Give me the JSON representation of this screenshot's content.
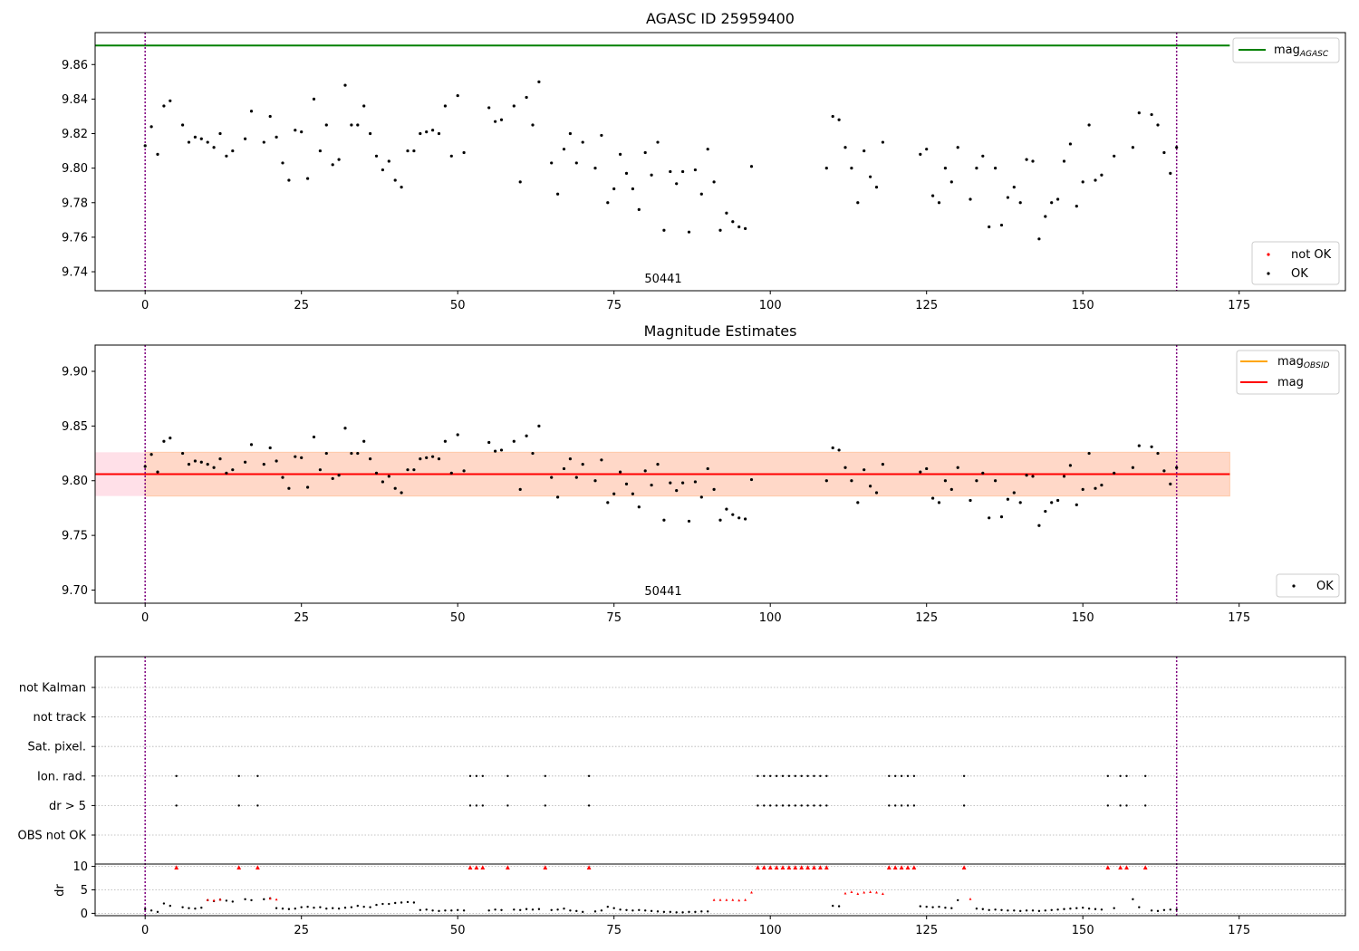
{
  "colors": {
    "agasc_line": "#008000",
    "mag_line": "#ff0000",
    "obsid_line": "#ffa500",
    "ok": "#000000",
    "not_ok": "#ff0000",
    "vline": "#800080",
    "band_inner": "#ffd8c8",
    "band_outer": "#ffe0e8",
    "grid": "#b0b0b0"
  },
  "panel1": {
    "title": "AGASC ID 25959400",
    "annotation": "50441",
    "legend_top": {
      "mag_label": "mag",
      "mag_sub": "AGASC"
    },
    "legend_bottom": {
      "not_ok_label": "not OK",
      "ok_label": "OK"
    }
  },
  "panel2": {
    "title": "Magnitude Estimates",
    "annotation": "50441",
    "legend_top": {
      "obsid_label": "mag",
      "obsid_sub": "OBSID",
      "mag_label": "mag"
    },
    "legend_bottom": {
      "ok_label": "OK"
    }
  },
  "panel3": {
    "ylabel": "dr"
  },
  "chart_data": [
    {
      "type": "scatter",
      "title": "AGASC ID 25959400",
      "xlim": [
        -8,
        192
      ],
      "ylim": [
        9.729,
        9.8785
      ],
      "xticks": [
        0,
        25,
        50,
        75,
        100,
        125,
        150,
        175
      ],
      "yticks": [
        9.74,
        9.76,
        9.78,
        9.8,
        9.82,
        9.84,
        9.86
      ],
      "ytick_labels": [
        "9.74",
        "9.76",
        "9.78",
        "9.80",
        "9.82",
        "9.84",
        "9.86"
      ],
      "hline": {
        "name": "mag_AGASC",
        "y": 9.871,
        "x_end": 173.5
      },
      "vlines": [
        0,
        165
      ],
      "annotation": {
        "text": "50441",
        "x": 82,
        "y": 9.733
      },
      "series": [
        {
          "name": "OK",
          "x": [
            0,
            1,
            2,
            3,
            4,
            6,
            7,
            8,
            9,
            10,
            11,
            12,
            13,
            14,
            16,
            17,
            19,
            20,
            21,
            22,
            23,
            24,
            25,
            26,
            27,
            28,
            29,
            30,
            31,
            32,
            33,
            34,
            35,
            36,
            37,
            38,
            39,
            40,
            41,
            42,
            43,
            44,
            45,
            46,
            47,
            48,
            49,
            50,
            51,
            55,
            56,
            57,
            59,
            60,
            61,
            62,
            63,
            65,
            66,
            67,
            68,
            69,
            70,
            72,
            73,
            74,
            75,
            76,
            77,
            78,
            79,
            80,
            81,
            82,
            83,
            84,
            85,
            86,
            87,
            88,
            89,
            90,
            91,
            92,
            93,
            94,
            95,
            96,
            97,
            109,
            110,
            111,
            112,
            113,
            114,
            115,
            116,
            117,
            118,
            124,
            125,
            126,
            127,
            128,
            129,
            130,
            132,
            133,
            134,
            135,
            136,
            137,
            138,
            139,
            140,
            141,
            142,
            143,
            144,
            145,
            146,
            147,
            148,
            149,
            150,
            151,
            152,
            153,
            155,
            158,
            159,
            161,
            162,
            163,
            164,
            165
          ],
          "y": [
            9.813,
            9.824,
            9.808,
            9.836,
            9.839,
            9.825,
            9.815,
            9.818,
            9.817,
            9.815,
            9.812,
            9.82,
            9.807,
            9.81,
            9.817,
            9.833,
            9.815,
            9.83,
            9.818,
            9.803,
            9.793,
            9.822,
            9.821,
            9.794,
            9.84,
            9.81,
            9.825,
            9.802,
            9.805,
            9.848,
            9.825,
            9.825,
            9.836,
            9.82,
            9.807,
            9.799,
            9.804,
            9.793,
            9.789,
            9.81,
            9.81,
            9.82,
            9.821,
            9.822,
            9.82,
            9.836,
            9.807,
            9.842,
            9.809,
            9.835,
            9.827,
            9.828,
            9.836,
            9.792,
            9.841,
            9.825,
            9.85,
            9.803,
            9.785,
            9.811,
            9.82,
            9.803,
            9.815,
            9.8,
            9.819,
            9.78,
            9.788,
            9.808,
            9.797,
            9.788,
            9.776,
            9.809,
            9.796,
            9.815,
            9.764,
            9.798,
            9.791,
            9.798,
            9.763,
            9.799,
            9.785,
            9.811,
            9.792,
            9.764,
            9.774,
            9.769,
            9.766,
            9.765,
            9.801,
            9.8,
            9.83,
            9.828,
            9.812,
            9.8,
            9.78,
            9.81,
            9.795,
            9.789,
            9.815,
            9.808,
            9.811,
            9.784,
            9.78,
            9.8,
            9.792,
            9.812,
            9.782,
            9.8,
            9.807,
            9.766,
            9.8,
            9.767,
            9.783,
            9.789,
            9.78,
            9.805,
            9.804,
            9.759,
            9.772,
            9.78,
            9.782,
            9.804,
            9.814,
            9.778,
            9.792,
            9.825,
            9.793,
            9.796,
            9.807,
            9.812,
            9.832,
            9.831,
            9.825,
            9.809,
            9.797,
            9.812
          ]
        }
      ]
    },
    {
      "type": "scatter",
      "title": "Magnitude Estimates",
      "xlim": [
        -8,
        192
      ],
      "ylim": [
        9.688,
        9.924
      ],
      "xticks": [
        0,
        25,
        50,
        75,
        100,
        125,
        150,
        175
      ],
      "yticks": [
        9.7,
        9.75,
        9.8,
        9.85,
        9.9
      ],
      "ytick_labels": [
        "9.70",
        "9.75",
        "9.80",
        "9.85",
        "9.90"
      ],
      "hlines": [
        {
          "name": "mag_OBSID",
          "y": 9.806,
          "band": [
            9.786,
            9.826
          ],
          "x_start": 0,
          "x_end": 173.5
        },
        {
          "name": "mag",
          "y": 9.806,
          "band": [
            9.786,
            9.826
          ],
          "x_start": -8,
          "x_end": 173.5
        }
      ],
      "vlines": [
        0,
        165
      ],
      "annotation": {
        "text": "50441",
        "x": 82,
        "y": 9.696
      },
      "series": [
        {
          "name": "OK",
          "x": [
            0,
            1,
            2,
            3,
            4,
            6,
            7,
            8,
            9,
            10,
            11,
            12,
            13,
            14,
            16,
            17,
            19,
            20,
            21,
            22,
            23,
            24,
            25,
            26,
            27,
            28,
            29,
            30,
            31,
            32,
            33,
            34,
            35,
            36,
            37,
            38,
            39,
            40,
            41,
            42,
            43,
            44,
            45,
            46,
            47,
            48,
            49,
            50,
            51,
            55,
            56,
            57,
            59,
            60,
            61,
            62,
            63,
            65,
            66,
            67,
            68,
            69,
            70,
            72,
            73,
            74,
            75,
            76,
            77,
            78,
            79,
            80,
            81,
            82,
            83,
            84,
            85,
            86,
            87,
            88,
            89,
            90,
            91,
            92,
            93,
            94,
            95,
            96,
            97,
            109,
            110,
            111,
            112,
            113,
            114,
            115,
            116,
            117,
            118,
            124,
            125,
            126,
            127,
            128,
            129,
            130,
            132,
            133,
            134,
            135,
            136,
            137,
            138,
            139,
            140,
            141,
            142,
            143,
            144,
            145,
            146,
            147,
            148,
            149,
            150,
            151,
            152,
            153,
            155,
            158,
            159,
            161,
            162,
            163,
            164,
            165
          ],
          "y": [
            9.813,
            9.824,
            9.808,
            9.836,
            9.839,
            9.825,
            9.815,
            9.818,
            9.817,
            9.815,
            9.812,
            9.82,
            9.807,
            9.81,
            9.817,
            9.833,
            9.815,
            9.83,
            9.818,
            9.803,
            9.793,
            9.822,
            9.821,
            9.794,
            9.84,
            9.81,
            9.825,
            9.802,
            9.805,
            9.848,
            9.825,
            9.825,
            9.836,
            9.82,
            9.807,
            9.799,
            9.804,
            9.793,
            9.789,
            9.81,
            9.81,
            9.82,
            9.821,
            9.822,
            9.82,
            9.836,
            9.807,
            9.842,
            9.809,
            9.835,
            9.827,
            9.828,
            9.836,
            9.792,
            9.841,
            9.825,
            9.85,
            9.803,
            9.785,
            9.811,
            9.82,
            9.803,
            9.815,
            9.8,
            9.819,
            9.78,
            9.788,
            9.808,
            9.797,
            9.788,
            9.776,
            9.809,
            9.796,
            9.815,
            9.764,
            9.798,
            9.791,
            9.798,
            9.763,
            9.799,
            9.785,
            9.811,
            9.792,
            9.764,
            9.774,
            9.769,
            9.766,
            9.765,
            9.801,
            9.8,
            9.83,
            9.828,
            9.812,
            9.8,
            9.78,
            9.81,
            9.795,
            9.789,
            9.815,
            9.808,
            9.811,
            9.784,
            9.78,
            9.8,
            9.792,
            9.812,
            9.782,
            9.8,
            9.807,
            9.766,
            9.8,
            9.767,
            9.783,
            9.789,
            9.78,
            9.805,
            9.804,
            9.759,
            9.772,
            9.78,
            9.782,
            9.804,
            9.814,
            9.778,
            9.792,
            9.825,
            9.793,
            9.796,
            9.807,
            9.812,
            9.832,
            9.831,
            9.825,
            9.809,
            9.797,
            9.812
          ]
        }
      ]
    },
    {
      "type": "scatter",
      "xlim": [
        -8,
        192
      ],
      "xticks": [
        0,
        25,
        50,
        75,
        100,
        125,
        150,
        175
      ],
      "flag_categories": [
        "not Kalman",
        "not track",
        "Sat. pixel.",
        "Ion. rad.",
        "dr > 5",
        "OBS not OK"
      ],
      "vlines": [
        0,
        165
      ],
      "flags": {
        "Ion. rad.": [
          5,
          15,
          18,
          52,
          53,
          54,
          58,
          64,
          71,
          98,
          99,
          100,
          101,
          102,
          103,
          104,
          105,
          106,
          107,
          108,
          109,
          119,
          120,
          121,
          122,
          123,
          131,
          154,
          156,
          157,
          160
        ],
        "dr > 5": [
          5,
          15,
          18,
          52,
          53,
          54,
          58,
          64,
          71,
          98,
          99,
          100,
          101,
          102,
          103,
          104,
          105,
          106,
          107,
          108,
          109,
          119,
          120,
          121,
          122,
          123,
          131,
          154,
          156,
          157,
          160
        ]
      },
      "dr": {
        "ylabel": "dr",
        "ylim": [
          -0.5,
          10.5
        ],
        "yticks": [
          0,
          5,
          10
        ],
        "ok_x": [
          0,
          1,
          2,
          3,
          4,
          6,
          7,
          8,
          9,
          10,
          11,
          12,
          13,
          14,
          16,
          17,
          19,
          20,
          21,
          22,
          23,
          24,
          25,
          26,
          27,
          28,
          29,
          30,
          31,
          32,
          33,
          34,
          35,
          36,
          37,
          38,
          39,
          40,
          41,
          42,
          43,
          44,
          45,
          46,
          47,
          48,
          49,
          50,
          51,
          55,
          56,
          57,
          59,
          60,
          61,
          62,
          63,
          65,
          66,
          67,
          68,
          69,
          70,
          72,
          73,
          74,
          75,
          76,
          77,
          78,
          79,
          80,
          81,
          82,
          83,
          84,
          85,
          86,
          87,
          88,
          89,
          90,
          110,
          111,
          124,
          125,
          126,
          127,
          128,
          129,
          130,
          133,
          134,
          135,
          136,
          137,
          138,
          139,
          140,
          141,
          142,
          143,
          144,
          145,
          146,
          147,
          148,
          149,
          150,
          151,
          152,
          153,
          155,
          158,
          159,
          161,
          162,
          163,
          164,
          165
        ],
        "ok_y": [
          0.9,
          0.6,
          0.3,
          2.1,
          1.6,
          1.3,
          1.1,
          1.0,
          1.2,
          2.8,
          2.6,
          2.9,
          2.7,
          2.5,
          3.0,
          2.8,
          3.0,
          3.2,
          1.1,
          1.0,
          0.9,
          1.0,
          1.3,
          1.4,
          1.2,
          1.3,
          1.0,
          1.1,
          1.0,
          1.2,
          1.3,
          1.6,
          1.4,
          1.3,
          1.8,
          2.0,
          2.0,
          2.2,
          2.3,
          2.4,
          2.3,
          0.7,
          0.8,
          0.6,
          0.5,
          0.6,
          0.6,
          0.7,
          0.6,
          0.6,
          0.8,
          0.7,
          0.8,
          0.7,
          0.9,
          0.8,
          0.9,
          0.7,
          0.8,
          1.0,
          0.6,
          0.5,
          0.3,
          0.4,
          0.6,
          1.4,
          1.1,
          0.8,
          0.7,
          0.6,
          0.7,
          0.6,
          0.5,
          0.4,
          0.3,
          0.3,
          0.2,
          0.2,
          0.3,
          0.3,
          0.4,
          0.4,
          1.6,
          1.5,
          1.5,
          1.4,
          1.3,
          1.4,
          1.2,
          1.1,
          2.8,
          1.0,
          0.9,
          0.7,
          0.8,
          0.7,
          0.6,
          0.6,
          0.5,
          0.6,
          0.6,
          0.5,
          0.6,
          0.7,
          0.8,
          0.9,
          1.0,
          1.1,
          1.2,
          1.0,
          0.9,
          0.8,
          1.1,
          3.0,
          1.3,
          0.6,
          0.5,
          0.7,
          0.8,
          0.8
        ],
        "notok_x": [
          5,
          15,
          18,
          52,
          53,
          54,
          58,
          64,
          71,
          98,
          99,
          100,
          101,
          102,
          103,
          104,
          105,
          106,
          107,
          108,
          109,
          119,
          120,
          121,
          122,
          123,
          131,
          154,
          156,
          157,
          160,
          10,
          11,
          12,
          20,
          21,
          91,
          92,
          93,
          94,
          95,
          96,
          97,
          112,
          113,
          114,
          115,
          116,
          117,
          118,
          132
        ],
        "notok_y": [
          9.8,
          9.8,
          9.8,
          9.8,
          9.8,
          9.8,
          9.8,
          9.8,
          9.8,
          9.8,
          9.8,
          9.8,
          9.8,
          9.8,
          9.8,
          9.8,
          9.8,
          9.8,
          9.8,
          9.8,
          9.8,
          9.8,
          9.8,
          9.8,
          9.8,
          9.8,
          9.8,
          9.8,
          9.8,
          9.8,
          9.8,
          2.9,
          2.8,
          3.0,
          3.2,
          3.0,
          2.9,
          2.9,
          2.9,
          2.9,
          2.8,
          2.9,
          4.5,
          4.3,
          4.6,
          4.2,
          4.5,
          4.6,
          4.5,
          4.2,
          3.1
        ]
      }
    }
  ]
}
